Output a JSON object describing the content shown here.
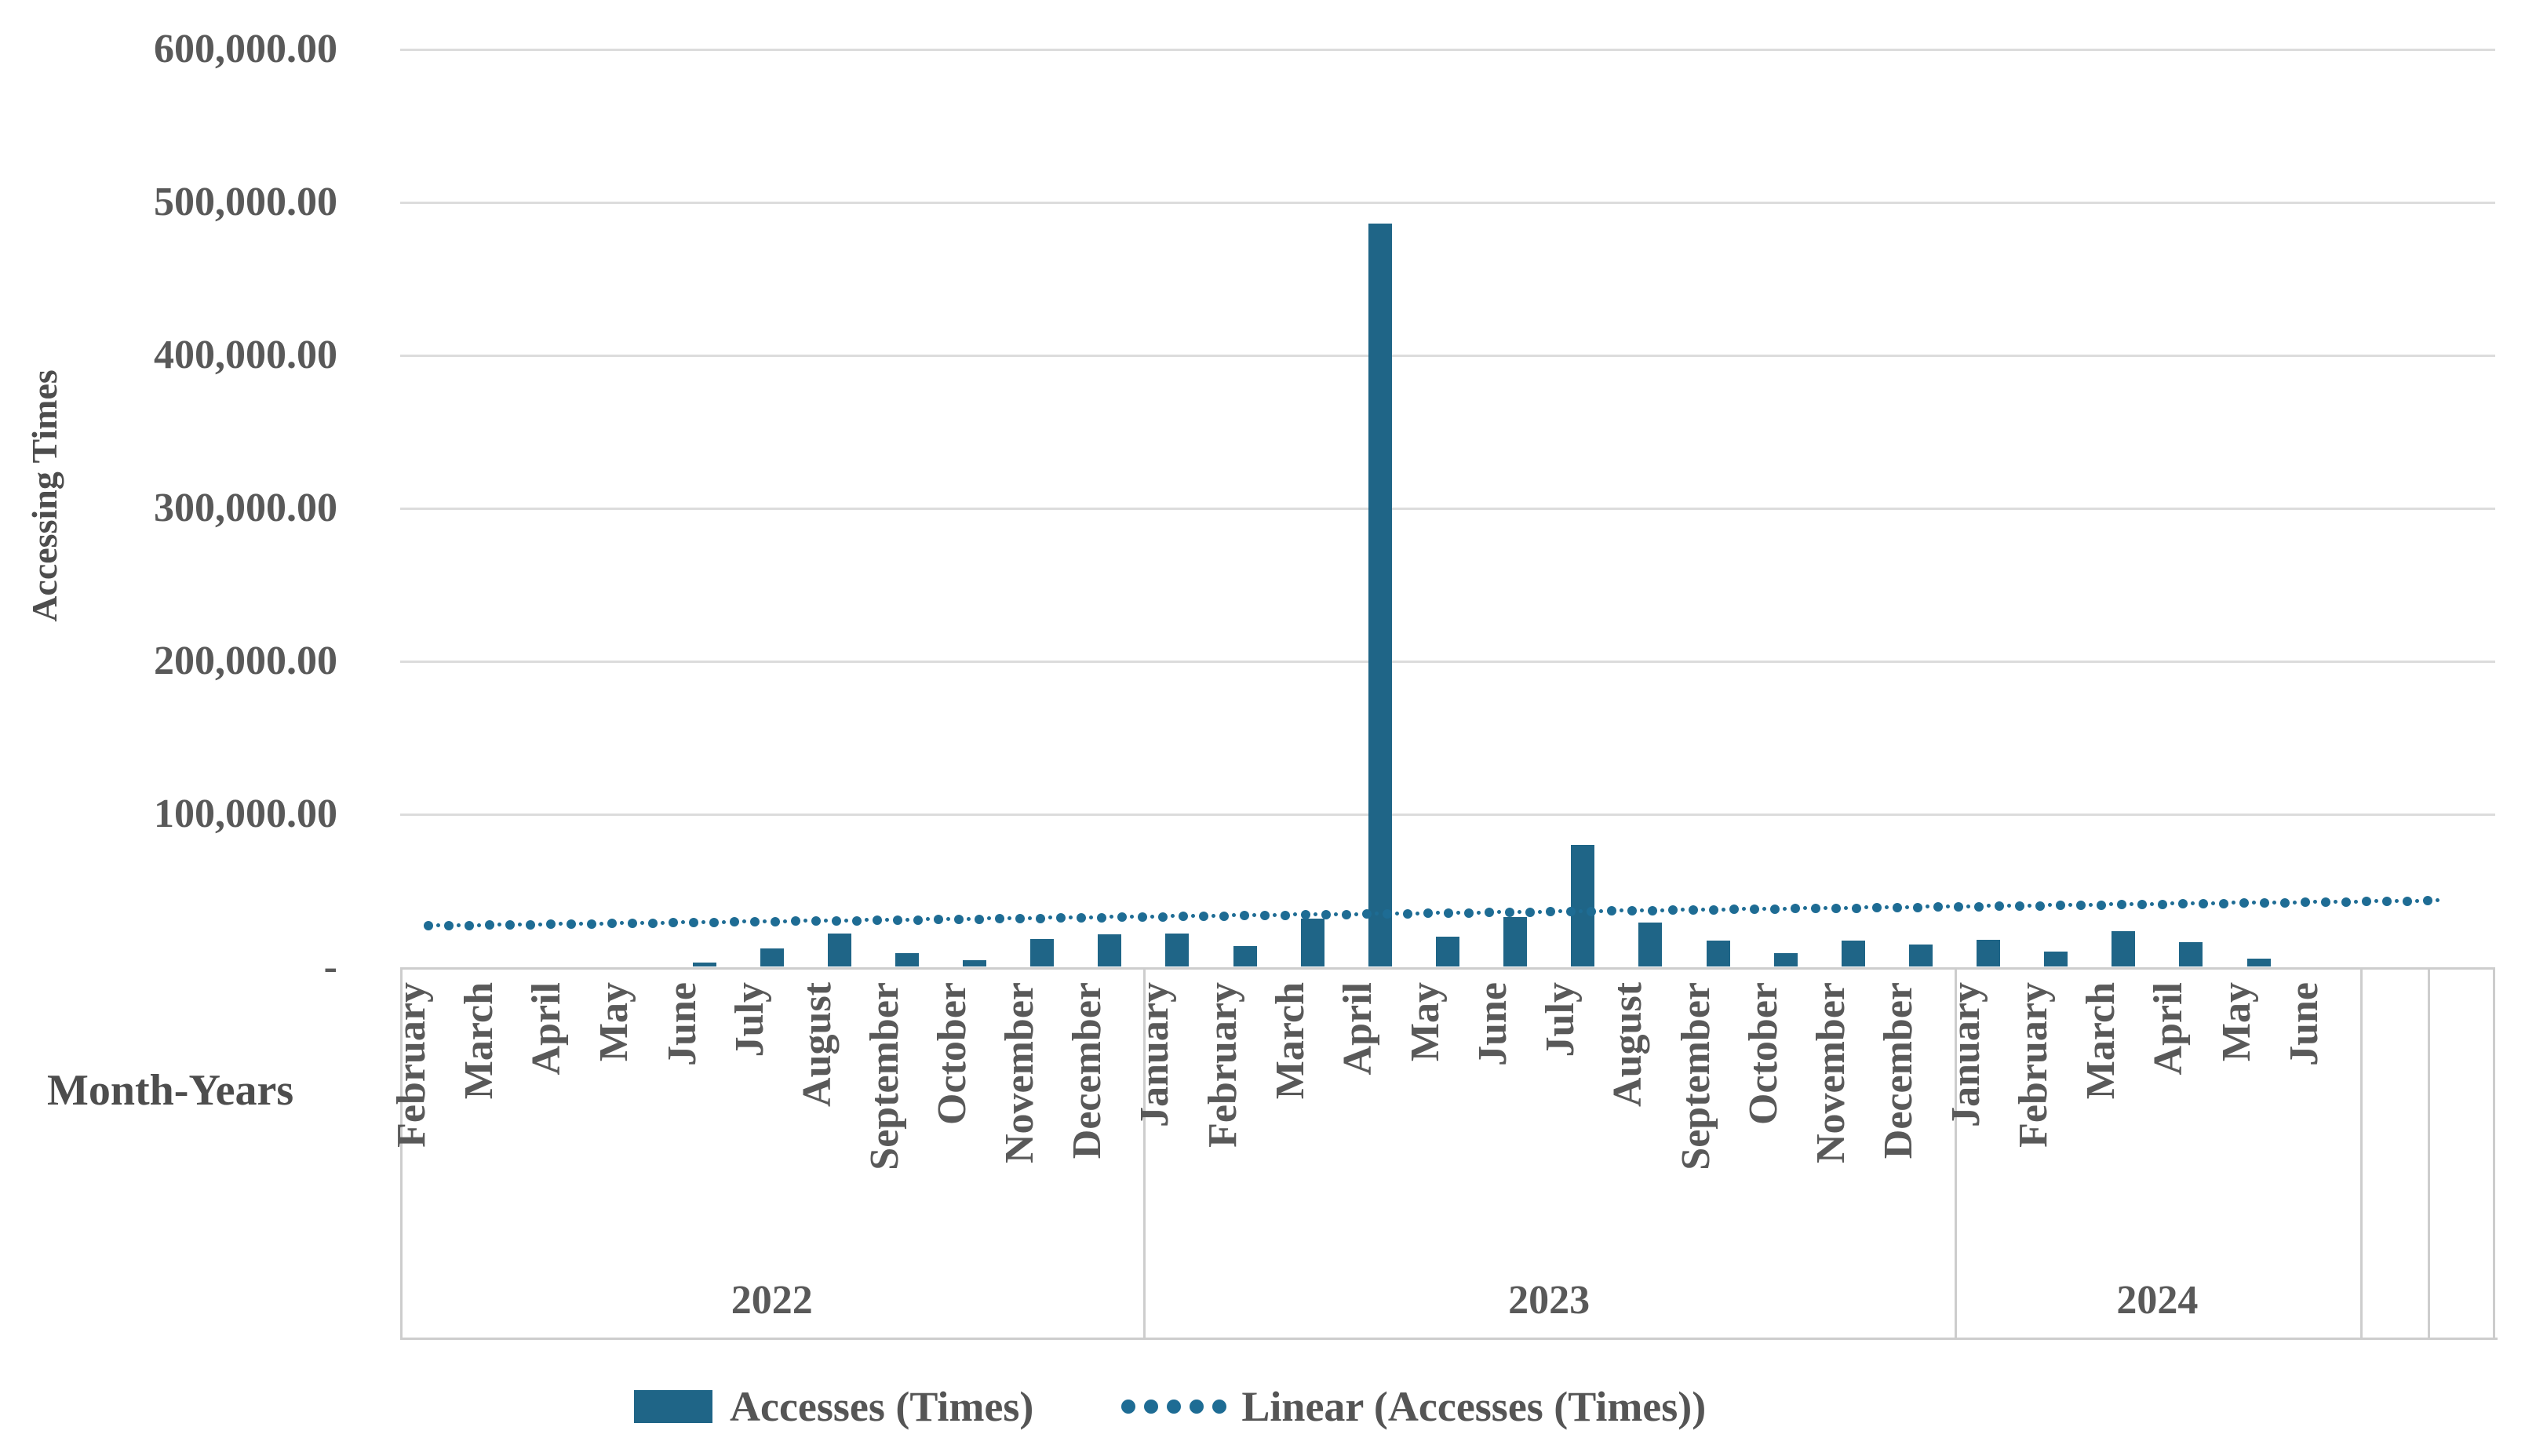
{
  "chart_data": {
    "type": "bar",
    "title": "",
    "xlabel": "Month-Years",
    "ylabel": "Accessing Times",
    "ylim": [
      0,
      600000
    ],
    "grid": true,
    "legend_position": "bottom",
    "y_ticks": [
      {
        "label": "600,000.00",
        "value": 600000
      },
      {
        "label": "500,000.00",
        "value": 500000
      },
      {
        "label": "400,000.00",
        "value": 400000
      },
      {
        "label": "300,000.00",
        "value": 300000
      },
      {
        "label": "200,000.00",
        "value": 200000
      },
      {
        "label": "100,000.00",
        "value": 100000
      },
      {
        "label": "-",
        "value": 0
      }
    ],
    "year_groups": [
      {
        "label": "2022",
        "count": 11
      },
      {
        "label": "2023",
        "count": 12
      },
      {
        "label": "2024",
        "count": 6
      },
      {
        "label": "",
        "count": 1
      },
      {
        "label": "",
        "count": 1
      }
    ],
    "categories": [
      "February",
      "March",
      "April",
      "May",
      "June",
      "July",
      "August",
      "September",
      "October",
      "November",
      "December",
      "January",
      "February",
      "March",
      "April",
      "May",
      "June",
      "July",
      "August",
      "September",
      "October",
      "November",
      "December",
      "January",
      "February",
      "March",
      "April",
      "May",
      "June",
      "",
      ""
    ],
    "series": [
      {
        "name": "Accesses (Times)",
        "type": "bar",
        "values": [
          0,
          0,
          0,
          0,
          3000,
          12500,
          22000,
          9000,
          4500,
          18500,
          21500,
          22000,
          14000,
          32000,
          486000,
          20000,
          33000,
          80000,
          29000,
          17500,
          9000,
          17500,
          15000,
          18000,
          10500,
          23500,
          16500,
          5500,
          0,
          null,
          null
        ]
      }
    ],
    "trendline": {
      "name": "Linear (Accesses (Times))",
      "style": "dotted",
      "start_value": 27000,
      "end_value": 43500
    }
  },
  "legend": {
    "bar_label": "Accesses (Times)",
    "trend_label": "Linear (Accesses (Times))"
  },
  "colors": {
    "bar": "#1F6587",
    "trend_dot": "#1E6C94",
    "gridline": "#DCDCDC",
    "axis_box": "#CDCDCD",
    "label_text": "#595959",
    "title_text": "#4D4D4D"
  }
}
